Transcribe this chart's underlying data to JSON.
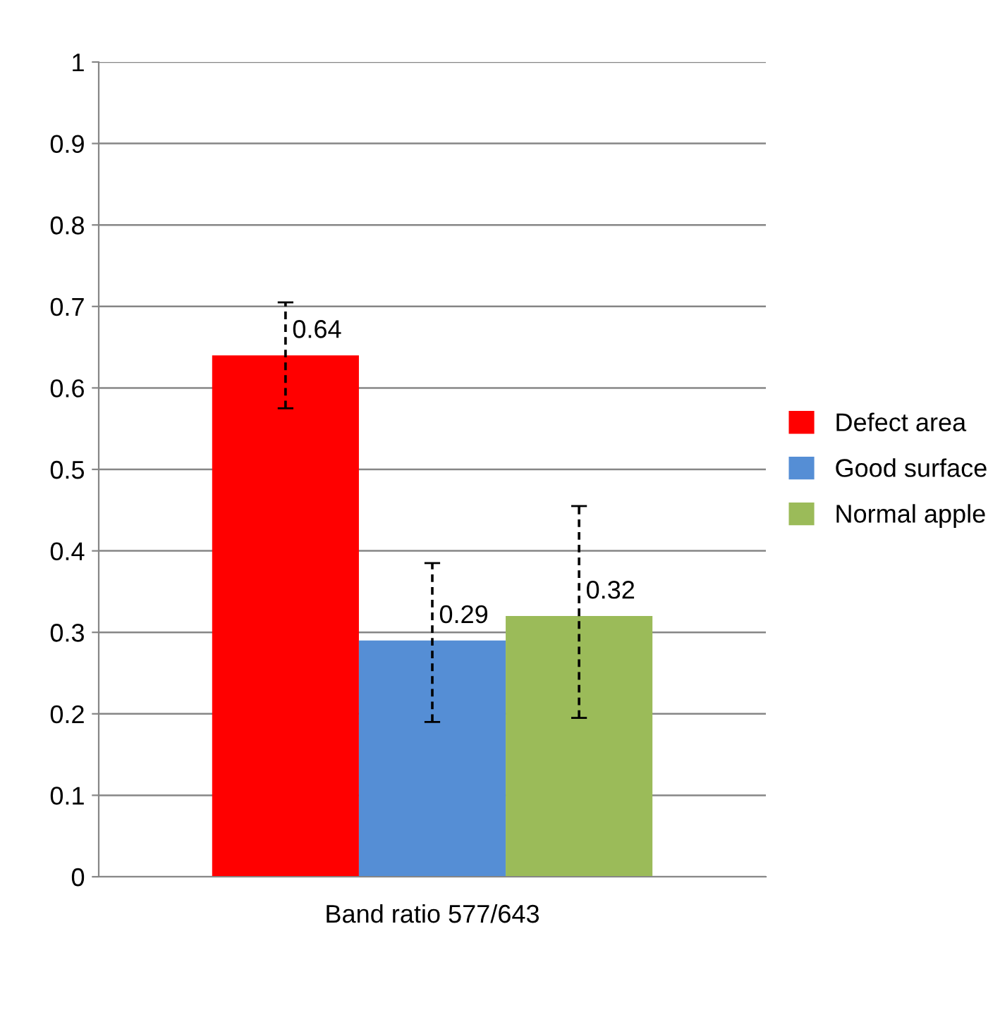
{
  "chart_data": {
    "type": "bar",
    "categories": [
      "Band ratio 577/643"
    ],
    "series": [
      {
        "name": "Defect area",
        "color": "#ff0000",
        "values": [
          0.64
        ],
        "errors": [
          [
            0.575,
            0.705
          ]
        ]
      },
      {
        "name": "Good surface",
        "color": "#558ed5",
        "values": [
          0.29
        ],
        "errors": [
          [
            0.19,
            0.385
          ]
        ]
      },
      {
        "name": "Normal apple",
        "color": "#9bbb59",
        "values": [
          0.32
        ],
        "errors": [
          [
            0.195,
            0.455
          ]
        ]
      }
    ],
    "ylim": [
      0,
      1
    ],
    "yticks": [
      0,
      0.1,
      0.2,
      0.3,
      0.4,
      0.5,
      0.6,
      0.7,
      0.8,
      0.9,
      1
    ],
    "grid": "y",
    "legend": "right",
    "data_labels": true
  }
}
